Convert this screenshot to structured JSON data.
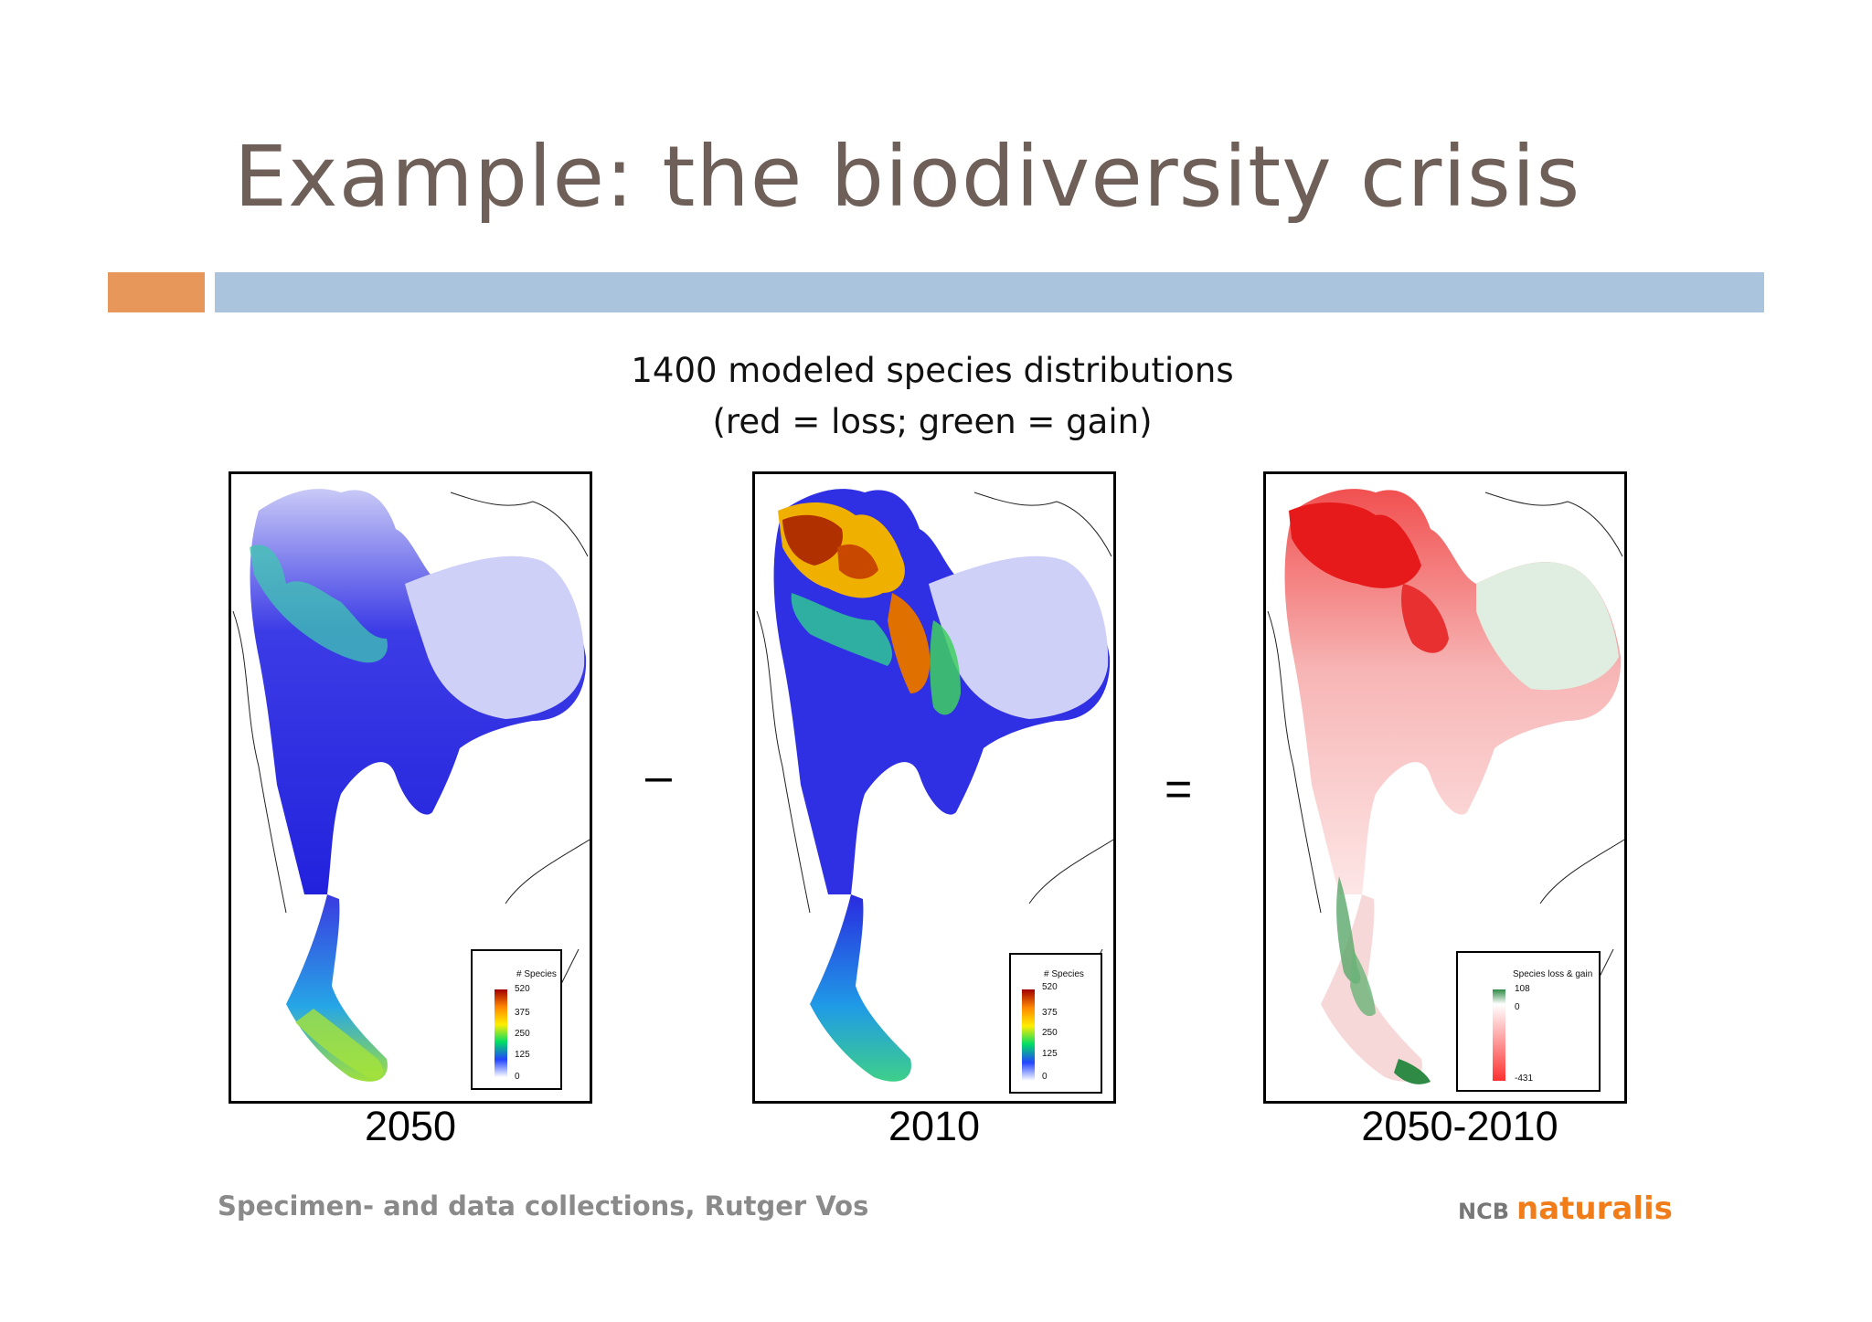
{
  "slide": {
    "title": "Example: the biodiversity crisis",
    "subtitle_line1": "1400 modeled species distributions",
    "subtitle_line2": "(red = loss; green = gain)",
    "accent_color": "#e8975a",
    "bar_color": "#a9c4dc"
  },
  "panels": [
    {
      "label": "2050",
      "legend_title": "# Species",
      "legend_ticks": [
        "520",
        "375",
        "250",
        "125",
        "0"
      ]
    },
    {
      "label": "2010",
      "legend_title": "# Species",
      "legend_ticks": [
        "520",
        "375",
        "250",
        "125",
        "0"
      ]
    },
    {
      "label": "2050-2010",
      "legend_title": "Species loss & gain",
      "legend_ticks": [
        "108",
        "0",
        "-431"
      ]
    }
  ],
  "operators": {
    "minus": "–",
    "equals": "="
  },
  "footer": {
    "text": "Specimen- and data collections, Rutger Vos",
    "logo_prefix": "NCB",
    "logo_name": "naturalis"
  }
}
